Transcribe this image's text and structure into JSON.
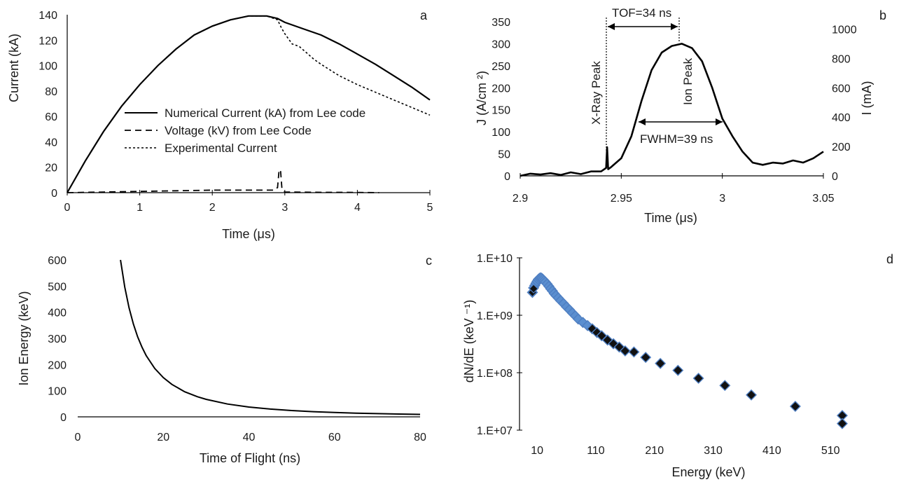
{
  "chart_data": [
    {
      "panel": "a",
      "type": "line",
      "xlabel": "Time (μs)",
      "ylabel": "Current (kA)",
      "xlim": [
        0,
        5
      ],
      "ylim": [
        0,
        140
      ],
      "xticks": [
        "0",
        "1",
        "2",
        "3",
        "4",
        "5"
      ],
      "yticks": [
        "0",
        "20",
        "40",
        "60",
        "80",
        "100",
        "120",
        "140"
      ],
      "grid": false,
      "legend": "center",
      "series": [
        {
          "name": "Numerical Current (kA) from Lee code",
          "style": "solid",
          "x": [
            0,
            0.25,
            0.5,
            0.75,
            1.0,
            1.25,
            1.5,
            1.75,
            2.0,
            2.25,
            2.5,
            2.75,
            2.9,
            3.0,
            3.25,
            3.5,
            3.75,
            4.0,
            4.25,
            4.5,
            4.75,
            5.0
          ],
          "y": [
            0,
            25,
            48,
            68,
            85,
            100,
            113,
            124,
            131,
            136,
            139,
            139,
            137,
            134,
            129,
            124,
            117,
            109,
            101,
            92,
            83,
            73
          ]
        },
        {
          "name": "Voltage (kV) from Lee Code",
          "style": "dashed",
          "x": [
            0,
            0.5,
            1.0,
            1.5,
            2.0,
            2.5,
            2.85,
            2.9,
            2.92,
            2.94,
            2.96,
            3.0,
            3.5,
            4.0,
            4.3
          ],
          "y": [
            0,
            0.5,
            1,
            1.5,
            2,
            2,
            2,
            4,
            17,
            18,
            3,
            0.5,
            0.3,
            0.2,
            0
          ]
        },
        {
          "name": "Experimental Current",
          "style": "dotted",
          "x": [
            0,
            0.25,
            0.5,
            0.75,
            1.0,
            1.25,
            1.5,
            1.75,
            2.0,
            2.25,
            2.5,
            2.75,
            2.9,
            2.95,
            3.0,
            3.1,
            3.2,
            3.3,
            3.4,
            3.5,
            3.75,
            4.0,
            4.25,
            4.5,
            4.75,
            5.0
          ],
          "y": [
            0,
            25,
            48,
            68,
            85,
            100,
            113,
            124,
            131,
            136,
            139,
            139,
            136,
            130,
            125,
            117,
            115,
            110,
            105,
            101,
            92,
            85,
            79,
            73,
            67,
            61
          ]
        }
      ]
    },
    {
      "panel": "b",
      "type": "line",
      "xlabel": "Time (μs)",
      "ylabel": "J (A/cm ²)",
      "ylabel_right": "I (mA)",
      "xlim": [
        2.9,
        3.05
      ],
      "ylim": [
        0,
        350
      ],
      "ylim_right": [
        0,
        1050
      ],
      "xticks": [
        "2.9",
        "2.95",
        "3",
        "3.05"
      ],
      "yticks": [
        "0",
        "50",
        "100",
        "150",
        "200",
        "250",
        "300",
        "350"
      ],
      "yticks_right": [
        "0",
        "200",
        "400",
        "600",
        "800",
        "1000"
      ],
      "grid": false,
      "series": [
        {
          "x": [
            2.9,
            2.905,
            2.91,
            2.915,
            2.92,
            2.925,
            2.93,
            2.935,
            2.94,
            2.9425,
            2.943,
            2.9435,
            2.945,
            2.95,
            2.955,
            2.96,
            2.965,
            2.97,
            2.975,
            2.98,
            2.985,
            2.99,
            2.995,
            3.0,
            3.005,
            3.01,
            3.015,
            3.02,
            3.025,
            3.03,
            3.035,
            3.04,
            3.045,
            3.05
          ],
          "y": [
            0,
            5,
            3,
            6,
            2,
            8,
            4,
            10,
            10,
            18,
            65,
            15,
            20,
            40,
            90,
            170,
            240,
            280,
            295,
            300,
            290,
            260,
            200,
            130,
            90,
            55,
            30,
            25,
            30,
            28,
            35,
            30,
            40,
            55
          ]
        }
      ],
      "annotations": [
        "TOF=34 ns",
        "FWHM=39 ns",
        "X-Ray  Peak",
        "Ion  Peak"
      ]
    },
    {
      "panel": "c",
      "type": "line",
      "xlabel": "Time of Flight (ns)",
      "ylabel": "Ion Energy (keV)",
      "xlim": [
        0,
        80
      ],
      "ylim": [
        0,
        600
      ],
      "xticks": [
        "0",
        "20",
        "40",
        "60",
        "80"
      ],
      "yticks": [
        "0",
        "100",
        "200",
        "300",
        "400",
        "500",
        "600"
      ],
      "grid": false,
      "series": [
        {
          "x": [
            10,
            11,
            12,
            13,
            14,
            15,
            16,
            18,
            20,
            22,
            25,
            28,
            30,
            35,
            40,
            45,
            50,
            55,
            60,
            65,
            70,
            75,
            80
          ],
          "y": [
            600,
            496,
            417,
            355,
            306,
            267,
            234,
            185,
            150,
            124,
            96,
            77,
            67,
            49,
            37.5,
            29.6,
            24,
            19.8,
            16.7,
            14.2,
            12.2,
            10.7,
            9.4
          ]
        }
      ]
    },
    {
      "panel": "d",
      "type": "scatter",
      "xlabel": "Energy (keV)",
      "ylabel": "dN/dE (keV ⁻¹)",
      "xlim": [
        -20,
        610
      ],
      "ylim": [
        10000000.0,
        10000000000.0
      ],
      "yscale": "log",
      "xticks": [
        "10",
        "110",
        "210",
        "310",
        "410",
        "510"
      ],
      "yticks": [
        "1.E+07",
        "1.E+08",
        "1.E+09",
        "1.E+10"
      ],
      "grid": false,
      "series": [
        {
          "marker": "diamond",
          "x": [
            2,
            4,
            6,
            8,
            10,
            12,
            14,
            16,
            18,
            20,
            22,
            24,
            27,
            30,
            33,
            36,
            39,
            42,
            46,
            50,
            55,
            60,
            65,
            70,
            75,
            80,
            88,
            96,
            104,
            112,
            120,
            130,
            140,
            150,
            160,
            175,
            195,
            220,
            250,
            285,
            330,
            375,
            450,
            530
          ],
          "y": [
            2500000000.0,
            3000000000.0,
            3300000000.0,
            3600000000.0,
            3900000000.0,
            4200000000.0,
            4400000000.0,
            4500000000.0,
            4400000000.0,
            4200000000.0,
            4000000000.0,
            3800000000.0,
            3500000000.0,
            3200000000.0,
            2900000000.0,
            2650000000.0,
            2400000000.0,
            2200000000.0,
            2000000000.0,
            1800000000.0,
            1600000000.0,
            1400000000.0,
            1250000000.0,
            1100000000.0,
            980000000.0,
            860000000.0,
            750000000.0,
            660000000.0,
            580000000.0,
            500000000.0,
            440000000.0,
            370000000.0,
            320000000.0,
            280000000.0,
            240000000.0,
            230000000.0,
            185000000.0,
            145000000.0,
            110000000.0,
            80000000.0,
            60000000.0,
            41000000.0,
            26000000.0,
            18000000.0
          ]
        }
      ]
    }
  ],
  "extra_points_d": {
    "x": [
      530
    ],
    "y": [
      13000000.0
    ]
  }
}
